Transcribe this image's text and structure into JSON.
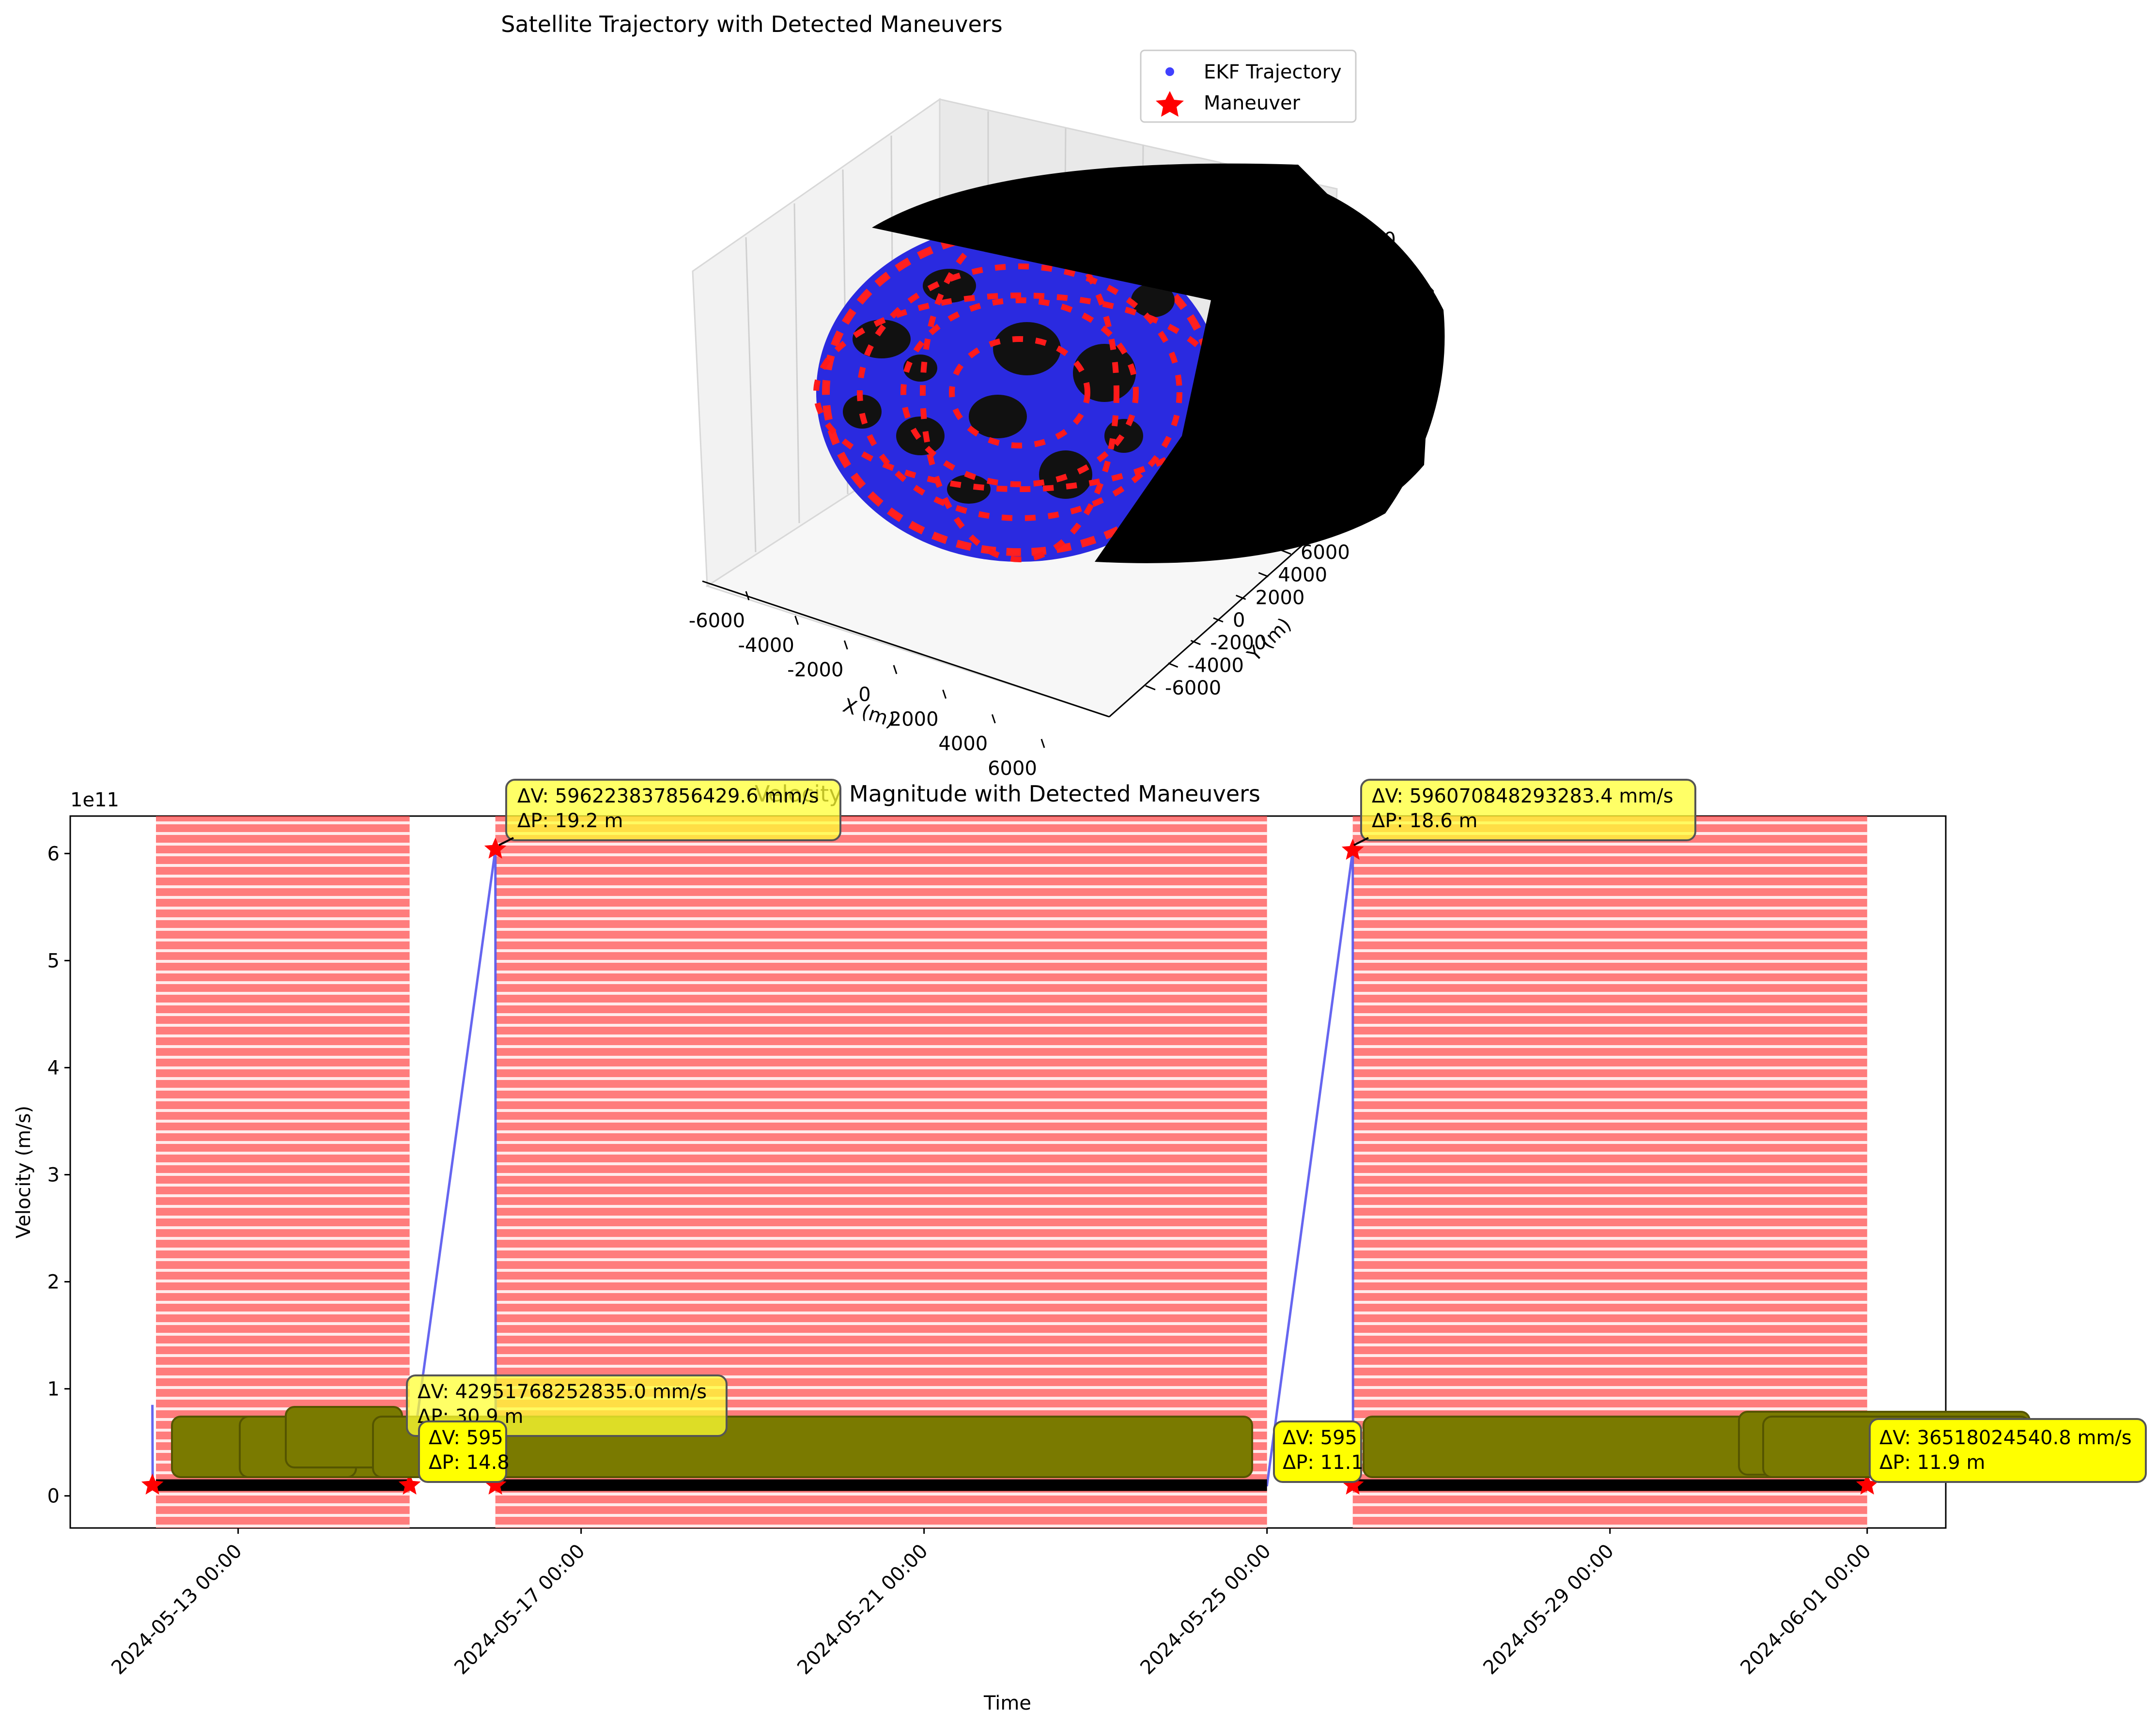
{
  "chart_data": [
    {
      "type": "scatter",
      "title": "Satellite Trajectory with Detected Maneuvers",
      "xlabel": "X (m)",
      "ylabel": "Y (m)",
      "zlabel": "",
      "x_ticks": [
        "-6000",
        "-4000",
        "-2000",
        "0",
        "2000",
        "4000",
        "6000"
      ],
      "y_ticks": [
        "-6000",
        "-4000",
        "-2000",
        "0",
        "2000",
        "4000",
        "6000"
      ],
      "z_ticks": [
        "6000"
      ],
      "xlim": [
        -7000,
        7000
      ],
      "ylim": [
        -7000,
        7000
      ],
      "legend": {
        "placement": "top-right",
        "entries": [
          {
            "label": "EKF Trajectory",
            "marker": "circle",
            "color": "#4040ff"
          },
          {
            "label": "Maneuver",
            "marker": "star",
            "color": "#ff0000"
          }
        ]
      },
      "series": [
        {
          "name": "EKF Trajectory",
          "color": "#4040ff",
          "shape": "sphere of radius ~6800 m"
        },
        {
          "name": "Maneuver",
          "color": "#ff0000",
          "shape": "dense red stars across the sphere"
        }
      ],
      "grid": true
    },
    {
      "type": "line",
      "title": "Velocity Magnitude with Detected Maneuvers",
      "xlabel": "Time",
      "ylabel": "Velocity (m/s)",
      "y_scale_label": "1e11",
      "y_ticks": [
        "0",
        "1",
        "2",
        "3",
        "4",
        "5",
        "6"
      ],
      "ylim": [
        -0.3,
        6.35
      ],
      "x_ticks": [
        "2024-05-13 00:00",
        "2024-05-17 00:00",
        "2024-05-21 00:00",
        "2024-05-25 00:00",
        "2024-05-29 00:00",
        "2024-06-01 00:00"
      ],
      "xlim": [
        "2024-05-11 01:00",
        "2024-06-01 22:00"
      ],
      "series": [
        {
          "name": "Velocity",
          "color": "#5555ee",
          "points": [
            {
              "t": "2024-05-12 00:00",
              "v": 0.85
            },
            {
              "t": "2024-05-12 00:05",
              "v": 0.1
            },
            {
              "t": "2024-05-14 23:30",
              "v": 0.1
            },
            {
              "t": "2024-05-16 00:00",
              "v": 6.04
            },
            {
              "t": "2024-05-16 00:05",
              "v": 0.1
            },
            {
              "t": "2024-05-25 00:00",
              "v": 0.1
            },
            {
              "t": "2024-05-26 00:00",
              "v": 6.03
            },
            {
              "t": "2024-05-26 00:05",
              "v": 0.1
            },
            {
              "t": "2024-06-01 00:00",
              "v": 0.1
            }
          ]
        }
      ],
      "maneuver_bands": [
        {
          "start": "2024-05-12 01:00",
          "end": "2024-05-15 00:00"
        },
        {
          "start": "2024-05-16 00:00",
          "end": "2024-05-25 00:00"
        },
        {
          "start": "2024-05-26 00:00",
          "end": "2024-06-01 00:00"
        }
      ],
      "maneuver_points": [
        {
          "t": "2024-05-12 00:00",
          "v": 0.1
        },
        {
          "t": "2024-05-15 00:00",
          "v": 0.1
        },
        {
          "t": "2024-05-16 00:00",
          "v": 6.04
        },
        {
          "t": "2024-05-16 00:00",
          "v": 0.1
        },
        {
          "t": "2024-05-26 00:00",
          "v": 6.03
        },
        {
          "t": "2024-05-26 00:00",
          "v": 0.1
        },
        {
          "t": "2024-06-01 00:00",
          "v": 0.1
        }
      ],
      "annotations": [
        {
          "dv": "ΔV: 596223837856429.6 mm/s",
          "dp": "ΔP: 19.2 m",
          "style": "yellow"
        },
        {
          "dv": "ΔV: 596070848293283.4 mm/s",
          "dp": "ΔP: 18.6 m",
          "style": "yellow"
        },
        {
          "dv": "ΔV: 42951768252835.0 mm/s",
          "dp": "ΔP: 30.9 m",
          "style": "yellow"
        },
        {
          "dv": "ΔV: 595",
          "dp": "ΔP: 14.8",
          "style": "olive"
        },
        {
          "dv": "ΔV: 595",
          "dp": "ΔP: 11.1",
          "style": "olive"
        },
        {
          "dv": "ΔV: 36518024540.8 mm/s",
          "dp": "ΔP: 11.9 m",
          "style": "olive"
        }
      ],
      "grid": false
    }
  ]
}
